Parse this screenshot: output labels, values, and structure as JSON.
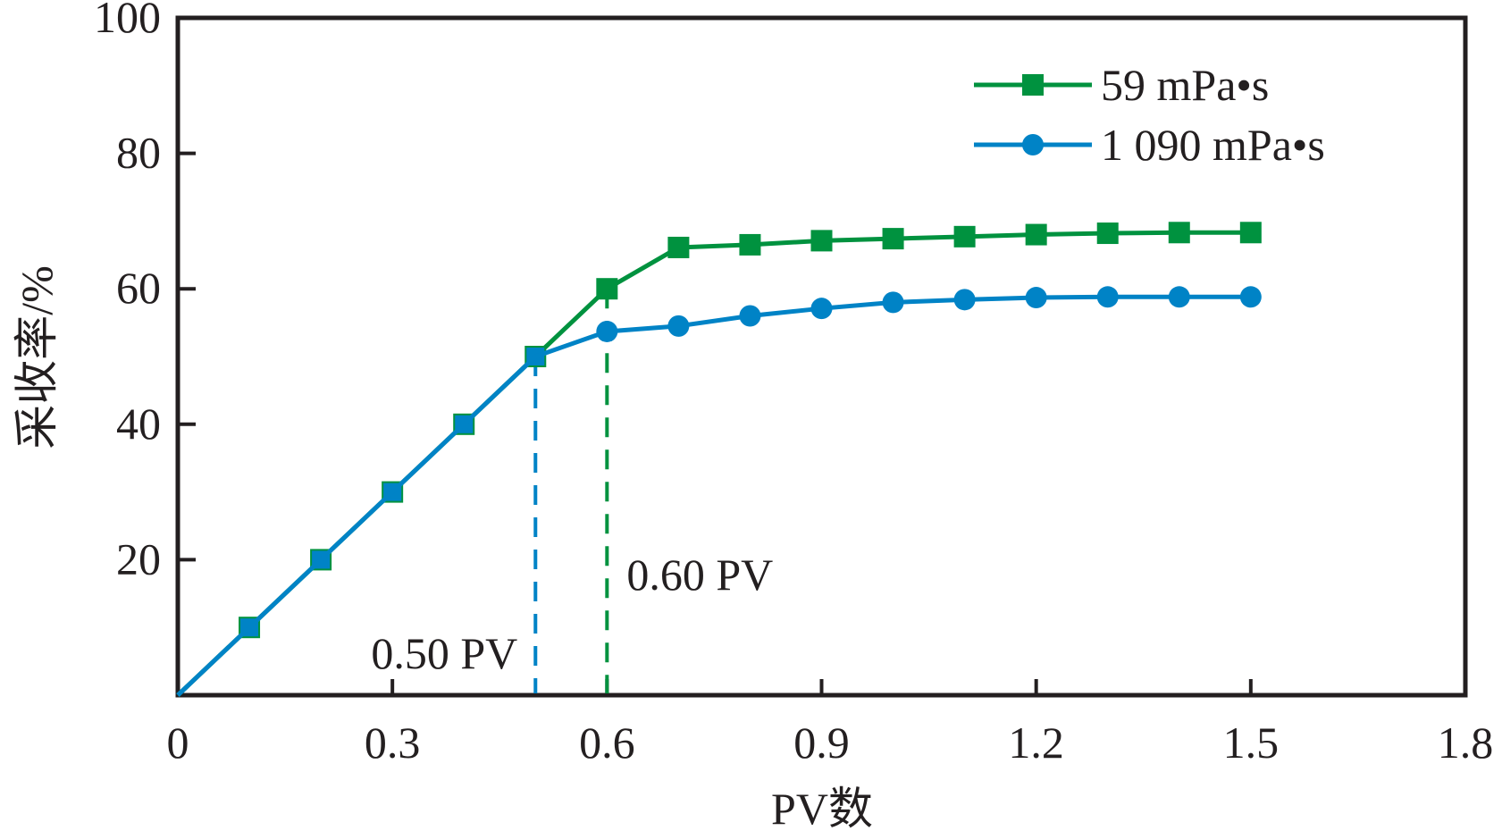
{
  "chart_data": {
    "type": "line",
    "title": "",
    "xlabel": "PV数",
    "ylabel": "采收率/%",
    "xlim": [
      0,
      1.8
    ],
    "ylim": [
      0,
      100
    ],
    "xticks": [
      0,
      0.3,
      0.6,
      0.9,
      1.2,
      1.5,
      1.8
    ],
    "xtick_labels": [
      "0",
      "0.3",
      "0.6",
      "0.9",
      "1.2",
      "1.5",
      "1.8"
    ],
    "yticks": [
      20,
      40,
      60,
      80,
      100
    ],
    "ytick_labels": [
      "20",
      "40",
      "60",
      "80",
      "100"
    ],
    "grid": false,
    "legend_position": "top-right",
    "series": [
      {
        "name": "59 mPa•s",
        "color": "#00923f",
        "marker": "square",
        "x": [
          0,
          0.1,
          0.2,
          0.3,
          0.4,
          0.5,
          0.6,
          0.7,
          0.8,
          0.9,
          1.0,
          1.1,
          1.2,
          1.3,
          1.4,
          1.5
        ],
        "y": [
          0,
          10,
          20,
          30,
          40,
          50,
          60,
          66.1,
          66.5,
          67.1,
          67.4,
          67.7,
          68.0,
          68.2,
          68.3,
          68.3
        ]
      },
      {
        "name": "1 090 mPa•s",
        "color": "#0083c6",
        "marker": "circle",
        "x": [
          0,
          0.1,
          0.2,
          0.3,
          0.4,
          0.5,
          0.6,
          0.7,
          0.8,
          0.9,
          1.0,
          1.1,
          1.2,
          1.3,
          1.4,
          1.5
        ],
        "y": [
          0,
          10,
          20,
          30,
          40,
          50,
          53.7,
          54.5,
          56.0,
          57.1,
          58.0,
          58.4,
          58.7,
          58.8,
          58.8,
          58.8
        ]
      }
    ],
    "annotations": [
      {
        "text": "0.50 PV",
        "x": 0.5,
        "color": "#0083c6",
        "line": "dashed-vertical"
      },
      {
        "text": "0.60 PV",
        "x": 0.6,
        "color": "#00923f",
        "line": "dashed-vertical"
      }
    ]
  }
}
